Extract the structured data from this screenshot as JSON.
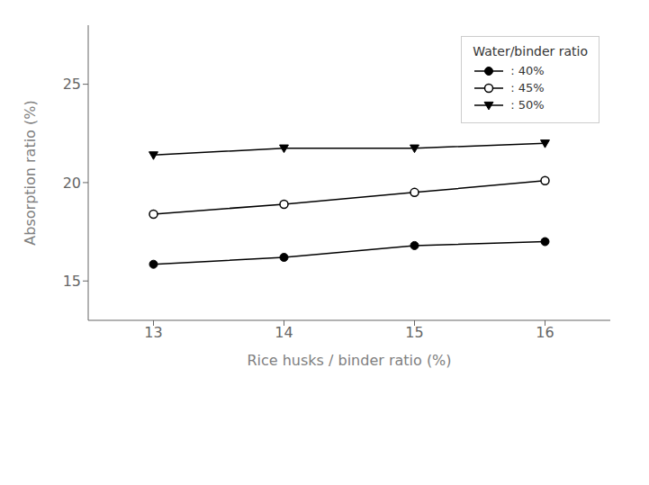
{
  "chart_data": {
    "type": "line",
    "xlabel": "Rice husks / binder ratio (%)",
    "ylabel": "Absorption ratio (%)",
    "legend_title": "Water/binder ratio",
    "x": [
      13,
      14,
      15,
      16
    ],
    "series": [
      {
        "name": ": 40%",
        "color": "#000000",
        "marker": "circle",
        "values": [
          15.85,
          16.2,
          16.8,
          17.0
        ]
      },
      {
        "name": ": 45%",
        "color": "#000000",
        "marker": "open_circle",
        "values": [
          18.4,
          18.9,
          19.5,
          20.1
        ]
      },
      {
        "name": ": 50%",
        "color": "#000000",
        "marker": "triangle_down",
        "values": [
          21.4,
          21.75,
          21.75,
          22.0
        ]
      }
    ],
    "xlim": [
      12.5,
      16.5
    ],
    "ylim": [
      13,
      28
    ],
    "xticks": [
      13,
      14,
      15,
      16
    ],
    "yticks": [
      15,
      20,
      25
    ],
    "grid": false,
    "legend": "upper right"
  }
}
